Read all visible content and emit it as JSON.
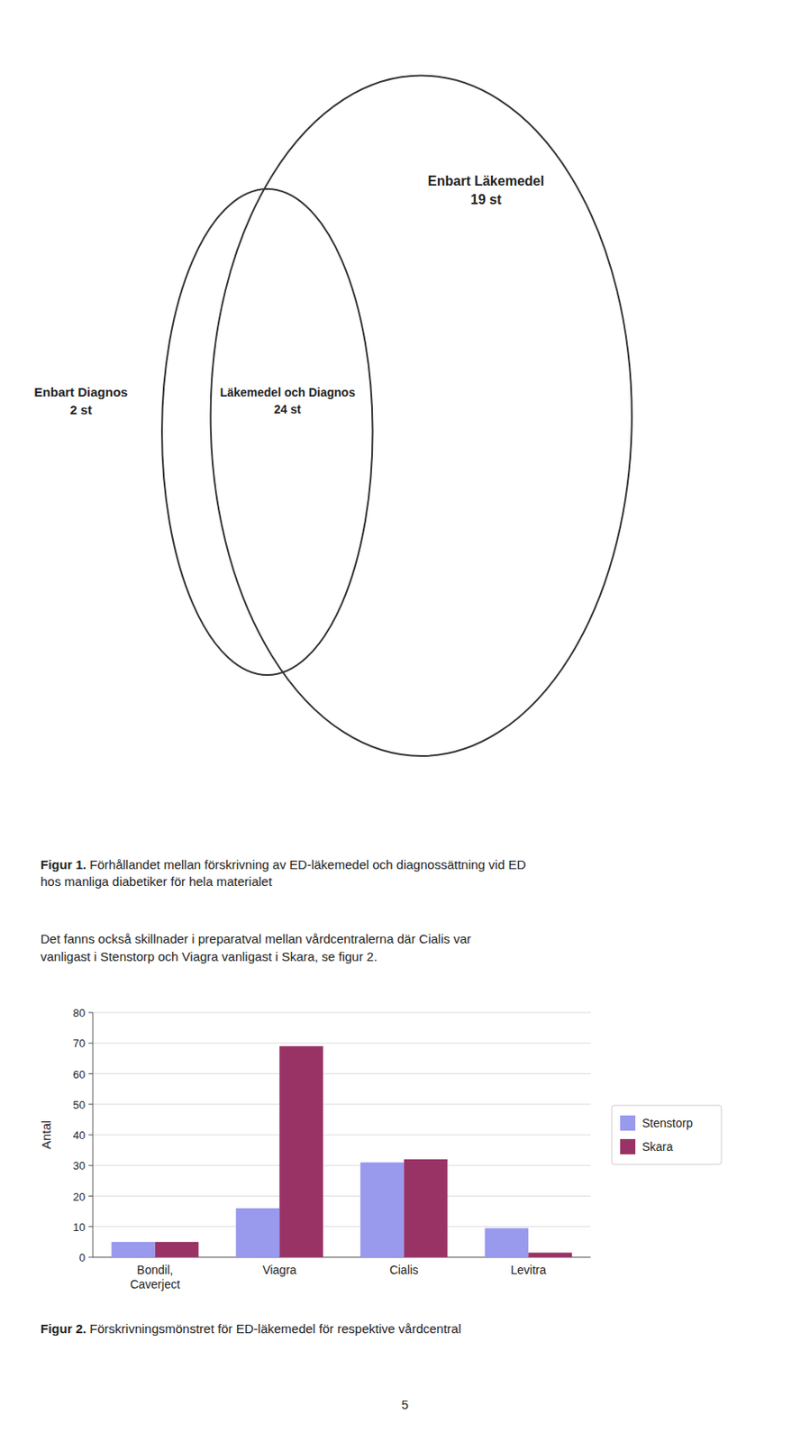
{
  "chart_data": [
    {
      "type": "venn",
      "categories": [
        "Enbart Diagnos",
        "Läkemedel och Diagnos",
        "Enbart Läkemedel"
      ],
      "values": [
        2,
        24,
        19
      ],
      "value_labels": [
        "2 st",
        "24 st",
        "19 st"
      ],
      "data_labels": true,
      "annotations": [
        "Figur 1.",
        "Förhållandet mellan förskrivning av ED-läkemedel och diagnossättning vid ED\nhos manliga diabetiker för hela materialet",
        "Det fanns också skillnader i preparatval mellan vårdcentralerna där Cialis var\nvanligast i Stenstorp och Viagra vanligast i Skara, se figur 2."
      ]
    },
    {
      "type": "bar",
      "categories": [
        "Bondil,\nCaverject",
        "Viagra",
        "Cialis",
        "Levitra"
      ],
      "series": [
        {
          "name": "Stenstorp",
          "color": "#9999ee",
          "values": [
            5,
            16,
            31,
            9.5
          ]
        },
        {
          "name": "Skara",
          "color": "#993366",
          "values": [
            5,
            69,
            32,
            1.5
          ]
        }
      ],
      "y_label": "Antal",
      "ylim": [
        0,
        80
      ],
      "yticks": [
        0,
        10,
        20,
        30,
        40,
        50,
        60,
        70,
        80
      ],
      "grid": true,
      "legend": "right",
      "annotations": [
        "Figur 2.",
        "Förskrivningsmönstret för ED-läkemedel för respektive vårdcentral",
        "5"
      ]
    }
  ]
}
